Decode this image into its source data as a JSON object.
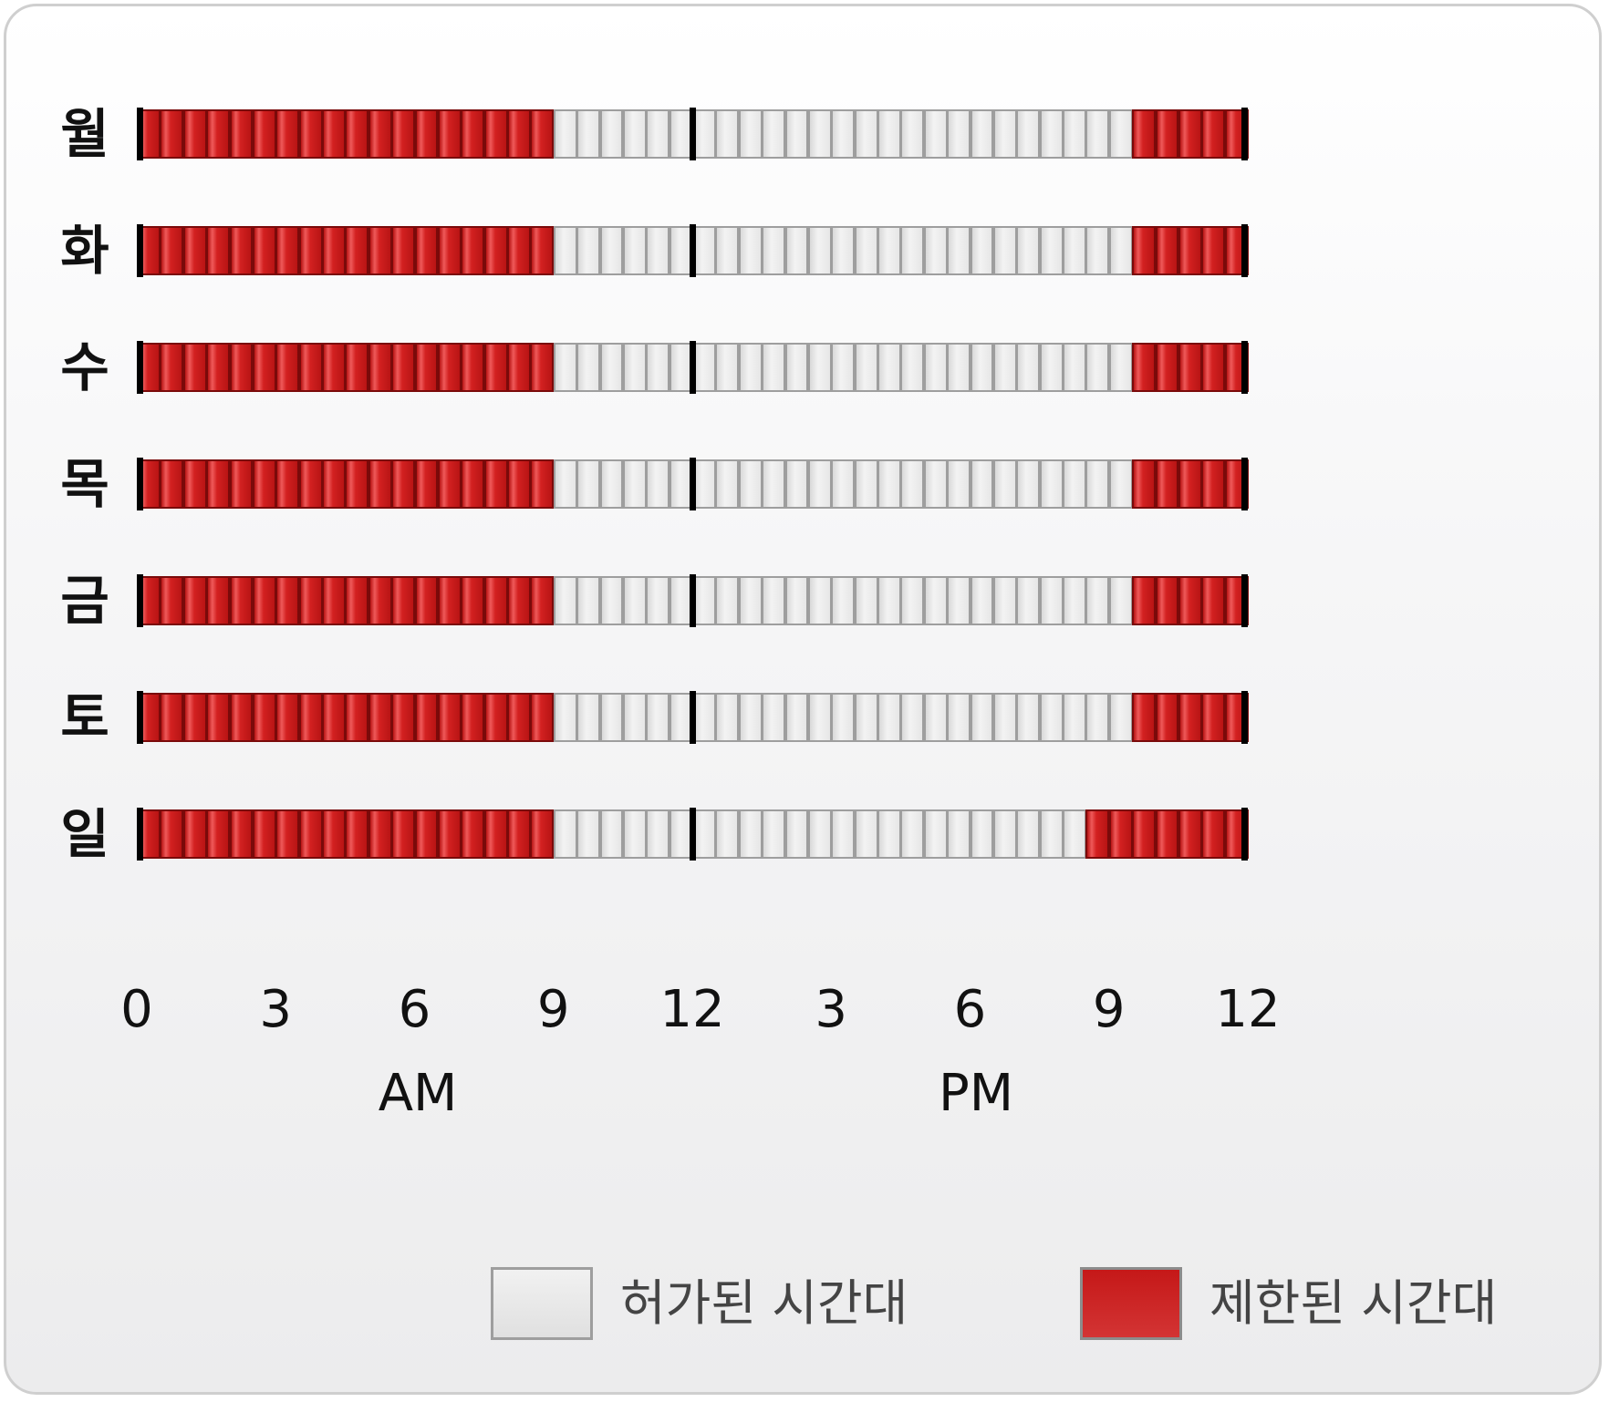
{
  "colors": {
    "allowed": "#e6e6e6",
    "restricted": "#c81c1c",
    "marker": "#000000"
  },
  "schedule": {
    "slots_per_day": 48,
    "slot_minutes": 30,
    "days": [
      {
        "label": "월",
        "restricted_ranges": [
          [
            "00:00",
            "09:00"
          ],
          [
            "21:30",
            "24:00"
          ]
        ]
      },
      {
        "label": "화",
        "restricted_ranges": [
          [
            "00:00",
            "09:00"
          ],
          [
            "21:30",
            "24:00"
          ]
        ]
      },
      {
        "label": "수",
        "restricted_ranges": [
          [
            "00:00",
            "09:00"
          ],
          [
            "21:30",
            "24:00"
          ]
        ]
      },
      {
        "label": "목",
        "restricted_ranges": [
          [
            "00:00",
            "09:00"
          ],
          [
            "21:30",
            "24:00"
          ]
        ]
      },
      {
        "label": "금",
        "restricted_ranges": [
          [
            "00:00",
            "09:00"
          ],
          [
            "21:30",
            "24:00"
          ]
        ]
      },
      {
        "label": "토",
        "restricted_ranges": [
          [
            "00:00",
            "09:00"
          ],
          [
            "21:30",
            "24:00"
          ]
        ]
      },
      {
        "label": "일",
        "restricted_ranges": [
          [
            "00:00",
            "09:00"
          ],
          [
            "20:30",
            "24:00"
          ]
        ]
      }
    ]
  },
  "axis": {
    "ticks": [
      "0",
      "3",
      "6",
      "9",
      "12",
      "3",
      "6",
      "9",
      "12"
    ],
    "am_label": "AM",
    "pm_label": "PM"
  },
  "legend": {
    "allowed_label": "허가된 시간대",
    "restricted_label": "제한된 시간대"
  }
}
